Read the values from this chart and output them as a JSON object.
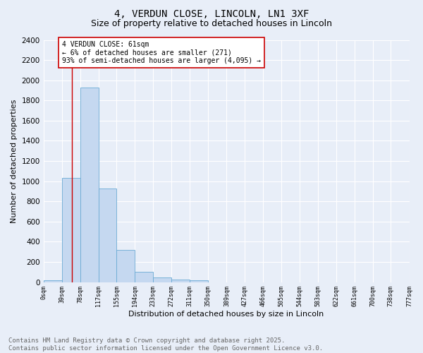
{
  "title_line1": "4, VERDUN CLOSE, LINCOLN, LN1 3XF",
  "title_line2": "Size of property relative to detached houses in Lincoln",
  "xlabel": "Distribution of detached houses by size in Lincoln",
  "ylabel": "Number of detached properties",
  "bar_heights": [
    20,
    1030,
    1930,
    930,
    320,
    105,
    48,
    27,
    20,
    0,
    0,
    0,
    0,
    0,
    0,
    0,
    0,
    0,
    0,
    0
  ],
  "bin_edges": [
    0,
    39,
    78,
    117,
    155,
    194,
    233,
    272,
    311,
    350,
    389,
    427,
    466,
    505,
    544,
    583,
    622,
    661,
    700,
    738,
    777
  ],
  "tick_labels": [
    "0sqm",
    "39sqm",
    "78sqm",
    "117sqm",
    "155sqm",
    "194sqm",
    "233sqm",
    "272sqm",
    "311sqm",
    "350sqm",
    "389sqm",
    "427sqm",
    "466sqm",
    "505sqm",
    "544sqm",
    "583sqm",
    "622sqm",
    "661sqm",
    "700sqm",
    "738sqm",
    "777sqm"
  ],
  "bar_color": "#c5d8f0",
  "bar_edge_color": "#6aaad4",
  "vline_x": 61,
  "vline_color": "#cc0000",
  "annotation_text": "4 VERDUN CLOSE: 61sqm\n← 6% of detached houses are smaller (271)\n93% of semi-detached houses are larger (4,095) →",
  "annotation_box_color": "#ffffff",
  "annotation_box_edge": "#cc0000",
  "ylim": [
    0,
    2400
  ],
  "yticks": [
    0,
    200,
    400,
    600,
    800,
    1000,
    1200,
    1400,
    1600,
    1800,
    2000,
    2200,
    2400
  ],
  "bg_color": "#e8eef8",
  "plot_bg_color": "#e8eef8",
  "grid_color": "#ffffff",
  "footer_line1": "Contains HM Land Registry data © Crown copyright and database right 2025.",
  "footer_line2": "Contains public sector information licensed under the Open Government Licence v3.0.",
  "title_fontsize": 10,
  "subtitle_fontsize": 9,
  "footer_fontsize": 6.5,
  "annotation_fontsize": 7,
  "ylabel_fontsize": 8,
  "xlabel_fontsize": 8,
  "ytick_fontsize": 7.5,
  "xtick_fontsize": 6
}
